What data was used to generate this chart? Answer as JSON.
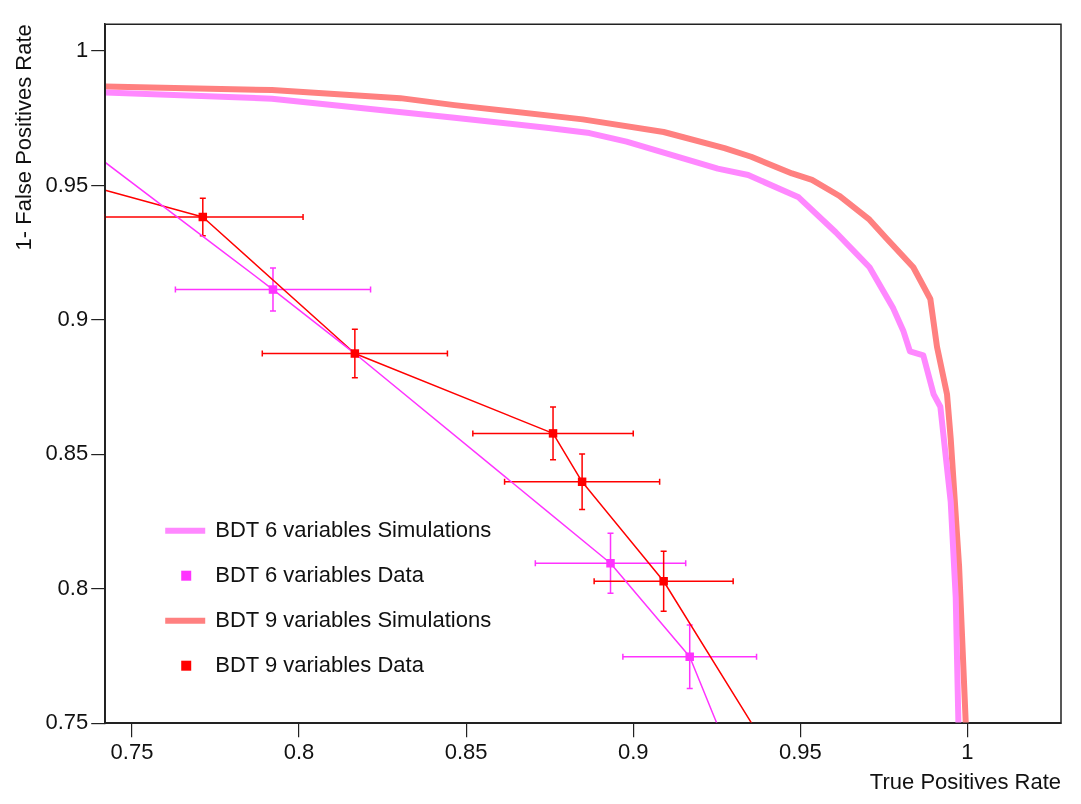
{
  "chart_data": {
    "type": "line",
    "xlabel": "True Positives Rate",
    "ylabel": "1- False Positives Rate",
    "xlim": [
      0.742,
      1.028
    ],
    "ylim": [
      0.75,
      1.01
    ],
    "xticks": [
      0.75,
      0.8,
      0.85,
      0.9,
      0.95,
      1
    ],
    "yticks": [
      0.75,
      0.8,
      0.85,
      0.9,
      0.95,
      1
    ],
    "grid": false,
    "legend": "bottom left",
    "series": [
      {
        "name": "BDT 6 variables Simulations",
        "type": "line",
        "color": "#ff88ff",
        "marker": "none",
        "x": [
          0.742,
          0.7919,
          0.8465,
          0.8747,
          0.8869,
          0.898,
          0.9253,
          0.9344,
          0.9495,
          0.9606,
          0.9707,
          0.9778,
          0.9808,
          0.9828,
          0.9868,
          0.9899,
          0.9919,
          0.995,
          0.9965,
          0.9973
        ],
        "values": [
          0.9846,
          0.9823,
          0.9752,
          0.9714,
          0.9695,
          0.9663,
          0.9563,
          0.9539,
          0.9456,
          0.9326,
          0.9196,
          0.9043,
          0.896,
          0.8883,
          0.8868,
          0.8723,
          0.8677,
          0.8323,
          0.7968,
          0.75
        ]
      },
      {
        "name": "BDT 6 variables Data",
        "type": "scatter",
        "color": "#ff33ff",
        "marker": "square",
        "x": [
          0.7922,
          0.8932,
          0.9169
        ],
        "values": [
          0.9113,
          0.8095,
          0.7747
        ],
        "errors": [
          0.008,
          0.0112,
          0.0118
        ],
        "xerrors": [
          0.0292,
          0.0225,
          0.02
        ]
      },
      {
        "name": "BDT 9 variables Simulations",
        "type": "line",
        "color": "#ff8080",
        "marker": "none",
        "x": [
          0.742,
          0.7919,
          0.8303,
          0.8465,
          0.8849,
          0.9091,
          0.9273,
          0.9353,
          0.9475,
          0.9535,
          0.9616,
          0.9707,
          0.9758,
          0.9838,
          0.9889,
          0.9909,
          0.9939,
          0.995,
          0.9975,
          0.9995
        ],
        "values": [
          0.9868,
          0.9855,
          0.9825,
          0.9799,
          0.9746,
          0.9699,
          0.9639,
          0.9607,
          0.9545,
          0.9521,
          0.9462,
          0.9373,
          0.9303,
          0.9196,
          0.9078,
          0.89,
          0.8723,
          0.8558,
          0.8085,
          0.75
        ]
      },
      {
        "name": "BDT 9 variables Data",
        "type": "scatter",
        "color": "#ff0000",
        "marker": "square",
        "x": [
          0.7712,
          0.8167,
          0.876,
          0.8847,
          0.9091
        ],
        "values": [
          0.9383,
          0.8875,
          0.8578,
          0.8398,
          0.8028
        ],
        "errors": [
          0.007,
          0.009,
          0.0098,
          0.0103,
          0.0112
        ],
        "xerrors": [
          0.03,
          0.0277,
          0.024,
          0.0232,
          0.0208
        ]
      },
      {
        "type": "line",
        "color": "#ff33ff",
        "marker": "none",
        "x": [
          0.742,
          0.7922,
          0.8167,
          0.8932,
          0.9169,
          0.925
        ],
        "values": [
          0.9586,
          0.9113,
          0.8875,
          0.8095,
          0.7747,
          0.75
        ]
      },
      {
        "type": "line",
        "color": "#ff0000",
        "marker": "none",
        "x": [
          0.742,
          0.7712,
          0.8167,
          0.876,
          0.8847,
          0.9091,
          0.9354
        ],
        "values": [
          0.9482,
          0.9383,
          0.8875,
          0.8578,
          0.8398,
          0.8028,
          0.75
        ]
      }
    ]
  }
}
